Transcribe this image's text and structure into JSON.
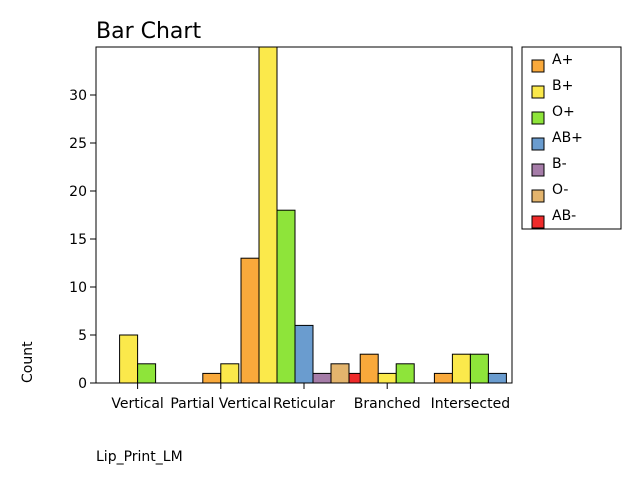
{
  "chart_data": {
    "type": "bar",
    "title": "Bar Chart",
    "xlabel": "Lip_Print_LM",
    "ylabel": "Count",
    "categories": [
      "Vertical",
      "Partial Vertical",
      "Reticular",
      "Branched",
      "Intersected"
    ],
    "series": [
      {
        "name": "A+",
        "color": "#f9a93b",
        "values": [
          0,
          1,
          13,
          3,
          1
        ]
      },
      {
        "name": "B+",
        "color": "#fbe94b",
        "values": [
          5,
          2,
          35,
          1,
          3
        ]
      },
      {
        "name": "O+",
        "color": "#8ee43a",
        "values": [
          2,
          0,
          18,
          2,
          3
        ]
      },
      {
        "name": "AB+",
        "color": "#6a9ccf",
        "values": [
          0,
          0,
          6,
          0,
          1
        ]
      },
      {
        "name": "B-",
        "color": "#a57ca8",
        "values": [
          0,
          0,
          1,
          0,
          0
        ]
      },
      {
        "name": "O-",
        "color": "#e3b46d",
        "values": [
          0,
          0,
          2,
          0,
          0
        ]
      },
      {
        "name": "AB-",
        "color": "#ee2a2a",
        "values": [
          0,
          0,
          1,
          0,
          0
        ]
      }
    ],
    "ylim": [
      0,
      35
    ],
    "yticks": [
      0,
      5,
      10,
      15,
      20,
      25,
      30
    ],
    "grid": false,
    "legend_position": "right"
  }
}
